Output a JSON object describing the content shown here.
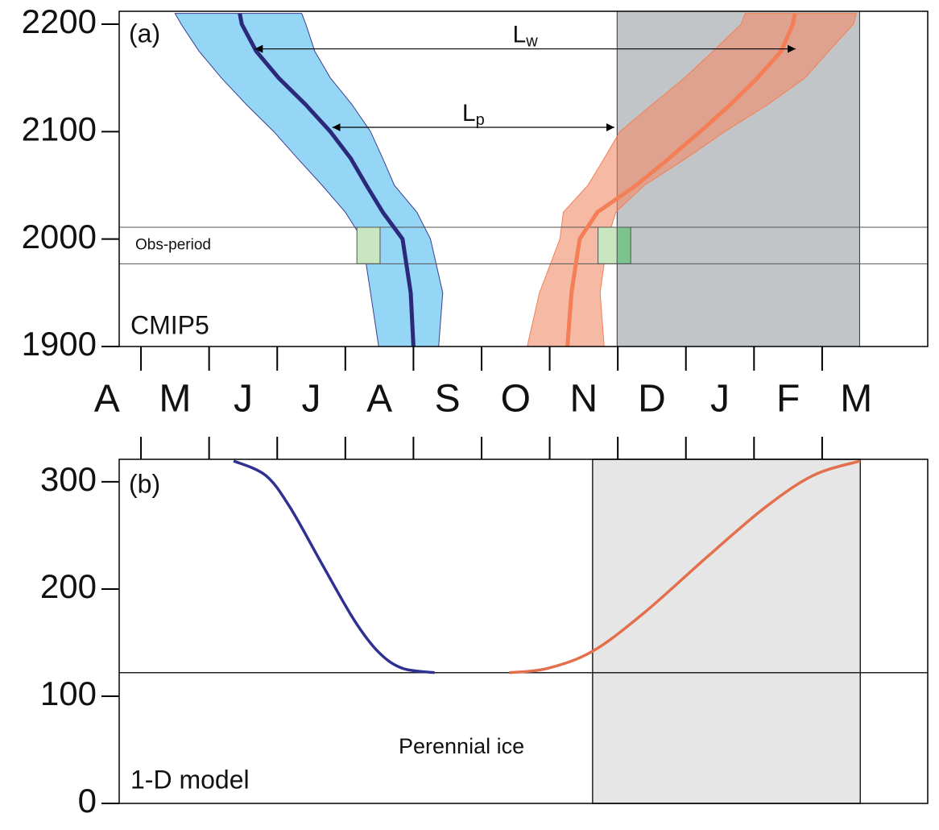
{
  "chart_data": [
    {
      "type": "line",
      "categories": [
        "A",
        "M",
        "J",
        "J",
        "A",
        "S",
        "O",
        "N",
        "D",
        "J",
        "F",
        "M"
      ],
      "xlim": [
        0.68,
        12.55
      ],
      "ylim": [
        1900,
        2212
      ],
      "yticks": [
        1900,
        2000,
        2100,
        2200
      ],
      "y": [
        1900,
        1950,
        2000,
        2025,
        2050,
        2075,
        2100,
        2125,
        2150,
        2175,
        2200,
        2210
      ],
      "bands": [
        {
          "color": "#8fd3f4",
          "edge": "#3a3f8f",
          "lower": [
            4.49,
            4.37,
            4.25,
            4.0,
            3.66,
            3.3,
            2.95,
            2.55,
            2.18,
            1.85,
            1.59,
            1.5
          ],
          "upper": [
            5.37,
            5.43,
            5.25,
            5.05,
            4.72,
            4.55,
            4.37,
            4.1,
            3.78,
            3.55,
            3.42,
            3.36
          ]
        },
        {
          "color": "#f08a68",
          "edge": "#f47f56",
          "lower": [
            6.67,
            6.85,
            7.15,
            7.2,
            7.56,
            7.8,
            8.03,
            8.5,
            8.98,
            9.4,
            9.81,
            9.87
          ],
          "upper": [
            7.8,
            7.74,
            7.85,
            7.97,
            8.39,
            9.0,
            9.57,
            10.2,
            10.75,
            11.1,
            11.46,
            11.5
          ]
        }
      ],
      "series": [
        {
          "color": "#2b2a7a",
          "x": [
            5.0,
            4.96,
            4.84,
            4.55,
            4.31,
            4.08,
            3.78,
            3.42,
            3.02,
            2.69,
            2.48,
            2.45
          ]
        },
        {
          "color": "#f47f56",
          "x": [
            7.26,
            7.32,
            7.44,
            7.7,
            8.27,
            8.75,
            9.21,
            9.65,
            10.05,
            10.4,
            10.57,
            10.6
          ]
        }
      ],
      "shade": {
        "x": [
          7.99,
          11.55
        ],
        "color": "#c2c5c8"
      },
      "obs_period": {
        "label": "Obs-period",
        "y": [
          1977,
          2011
        ]
      },
      "obs_boxes": [
        {
          "x": [
            4.17,
            4.51
          ],
          "color": "#c8e6c0"
        },
        {
          "x": [
            7.71,
            7.99
          ],
          "color": "#c8e6c0"
        },
        {
          "x": [
            7.99,
            8.19
          ],
          "color": "#7cc48e"
        }
      ],
      "arrows": [
        {
          "label": "L",
          "sub": "w",
          "y": 2177,
          "x": [
            2.67,
            10.61
          ]
        },
        {
          "label": "L",
          "sub": "p",
          "y": 2104,
          "x": [
            3.81,
            7.95
          ]
        }
      ],
      "annotations": [
        "(a)",
        "CMIP5"
      ]
    },
    {
      "type": "line",
      "xlim": [
        0.68,
        12.55
      ],
      "ylim": [
        0,
        321
      ],
      "yticks": [
        0,
        100,
        200,
        300
      ],
      "series": [
        {
          "color": "#2e3192",
          "x": [
            2.36,
            2.83,
            3.19,
            3.66,
            4.13,
            4.49,
            4.84,
            5.31
          ],
          "values": [
            319.5,
            306,
            276,
            223,
            171,
            141,
            126,
            122
          ]
        },
        {
          "color": "#e46f4c",
          "x": [
            6.41,
            6.97,
            7.63,
            8.39,
            9.33,
            10.16,
            10.87,
            11.56
          ],
          "values": [
            122,
            126,
            142,
            178,
            231,
            276,
            306,
            319.5
          ]
        }
      ],
      "hline": 122,
      "shade": {
        "x": [
          7.63,
          11.56
        ],
        "color": "#e6e6e6"
      },
      "annotations": [
        "(b)",
        "1-D model",
        "Perennial ice"
      ]
    }
  ]
}
